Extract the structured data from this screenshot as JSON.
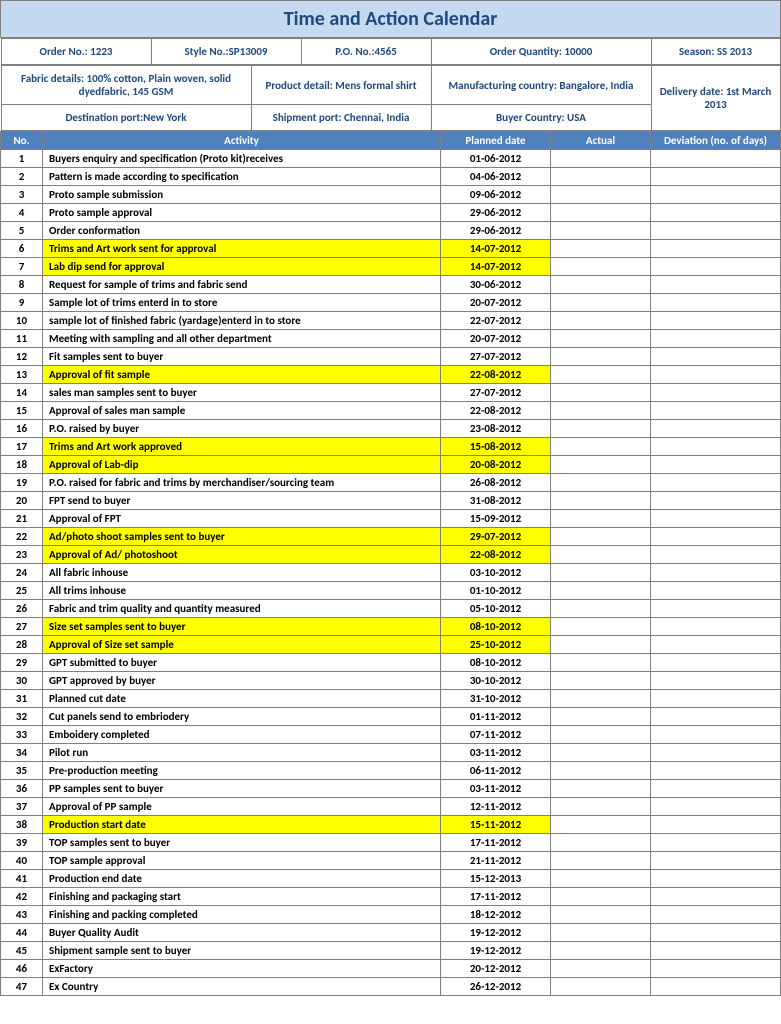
{
  "title": "Time and Action Calendar",
  "header": {
    "order_no": "Order No.: 1223",
    "style_no": "Style No.:SP13009",
    "po_no": "P.O. No.:4565",
    "order_qty": "Order Quantity: 10000",
    "season": "Season: SS 2013",
    "fabric": "Fabric details: 100% cotton, Plain woven, solid dyedfabric, 145 GSM",
    "product": "Product detail: Mens formal shirt",
    "mfg_country": "Manufacturing country: Bangalore, India",
    "delivery": "Delivery date: 1st March 2013",
    "dest_port": "Destination port:New York",
    "ship_port": "Shipment port: Chennai, India",
    "buyer_country": "Buyer Country: USA"
  },
  "columns": {
    "no": "No.",
    "activity": "Activity",
    "planned": "Planned date",
    "actual": "Actual",
    "deviation": "Deviation (no. of days)"
  },
  "rows": [
    {
      "n": "1",
      "a": "Buyers enquiry and specification (Proto kit)receives",
      "d": "01-06-2012",
      "hl": false
    },
    {
      "n": "2",
      "a": "Pattern is made according to specification",
      "d": "04-06-2012",
      "hl": false
    },
    {
      "n": "3",
      "a": "Proto sample submission",
      "d": "09-06-2012",
      "hl": false
    },
    {
      "n": "4",
      "a": "Proto sample approval",
      "d": "29-06-2012",
      "hl": false
    },
    {
      "n": "5",
      "a": "Order conformation",
      "d": "29-06-2012",
      "hl": false
    },
    {
      "n": "6",
      "a": "Trims and Art work sent for approval",
      "d": "14-07-2012",
      "hl": true
    },
    {
      "n": "7",
      "a": "Lab dip  send for approval",
      "d": "14-07-2012",
      "hl": true
    },
    {
      "n": "8",
      "a": "Request for sample of trims and fabric send",
      "d": "30-06-2012",
      "hl": false
    },
    {
      "n": "9",
      "a": "Sample lot of trims enterd in to store",
      "d": "20-07-2012",
      "hl": false
    },
    {
      "n": "10",
      "a": "sample lot of finished fabric (yardage)enterd in to store",
      "d": "22-07-2012",
      "hl": false
    },
    {
      "n": "11",
      "a": "Meeting with sampling and all other department",
      "d": "20-07-2012",
      "hl": false
    },
    {
      "n": "12",
      "a": "Fit samples sent to buyer",
      "d": "27-07-2012",
      "hl": false
    },
    {
      "n": "13",
      "a": "Approval of fit sample",
      "d": "22-08-2012",
      "hl": true
    },
    {
      "n": "14",
      "a": "sales man samples sent to buyer",
      "d": "27-07-2012",
      "hl": false
    },
    {
      "n": "15",
      "a": "Approval of sales man sample",
      "d": "22-08-2012",
      "hl": false
    },
    {
      "n": "16",
      "a": "P.O. raised by buyer",
      "d": "23-08-2012",
      "hl": false
    },
    {
      "n": "17",
      "a": "Trims and Art work approved",
      "d": "15-08-2012",
      "hl": true
    },
    {
      "n": "18",
      "a": "Approval of Lab-dip",
      "d": "20-08-2012",
      "hl": true
    },
    {
      "n": "19",
      "a": "P.O. raised for fabric and trims by merchandiser/sourcing team",
      "d": "26-08-2012",
      "hl": false
    },
    {
      "n": "20",
      "a": "FPT send to buyer",
      "d": "31-08-2012",
      "hl": false
    },
    {
      "n": "21",
      "a": "Approval of FPT",
      "d": "15-09-2012",
      "hl": false
    },
    {
      "n": "22",
      "a": "Ad/photo shoot samples sent to buyer",
      "d": "29-07-2012",
      "hl": true
    },
    {
      "n": "23",
      "a": "Approval of Ad/ photoshoot",
      "d": "22-08-2012",
      "hl": true
    },
    {
      "n": "24",
      "a": "All fabric inhouse",
      "d": "03-10-2012",
      "hl": false
    },
    {
      "n": "25",
      "a": "All trims inhouse",
      "d": "01-10-2012",
      "hl": false
    },
    {
      "n": "26",
      "a": "Fabric and trim quality and quantity measured",
      "d": "05-10-2012",
      "hl": false
    },
    {
      "n": "27",
      "a": "Size set samples sent to buyer",
      "d": "08-10-2012",
      "hl": true
    },
    {
      "n": "28",
      "a": "Approval of Size set sample",
      "d": "25-10-2012",
      "hl": true
    },
    {
      "n": "29",
      "a": "GPT submitted to buyer",
      "d": "08-10-2012",
      "hl": false
    },
    {
      "n": "30",
      "a": "GPT approved by buyer",
      "d": "30-10-2012",
      "hl": false
    },
    {
      "n": "31",
      "a": "Planned cut date",
      "d": "31-10-2012",
      "hl": false
    },
    {
      "n": "32",
      "a": "Cut panels send to embriodery",
      "d": "01-11-2012",
      "hl": false
    },
    {
      "n": "33",
      "a": "Emboidery completed",
      "d": "07-11-2012",
      "hl": false
    },
    {
      "n": "34",
      "a": "Pilot run",
      "d": "03-11-2012",
      "hl": false
    },
    {
      "n": "35",
      "a": "Pre-production meeting",
      "d": "06-11-2012",
      "hl": false
    },
    {
      "n": "36",
      "a": "PP samples sent to buyer",
      "d": "03-11-2012",
      "hl": false
    },
    {
      "n": "37",
      "a": "Approval of PP sample",
      "d": "12-11-2012",
      "hl": false
    },
    {
      "n": "38",
      "a": "Production  start date",
      "d": "15-11-2012",
      "hl": true
    },
    {
      "n": "39",
      "a": "TOP samples sent to buyer",
      "d": "17-11-2012",
      "hl": false
    },
    {
      "n": "40",
      "a": "TOP sample approval",
      "d": "21-11-2012",
      "hl": false
    },
    {
      "n": "41",
      "a": "Production end date",
      "d": "15-12-2013",
      "hl": false
    },
    {
      "n": "42",
      "a": "Finishing and packaging start",
      "d": "17-11-2012",
      "hl": false
    },
    {
      "n": "43",
      "a": "Finishing and packing completed",
      "d": "18-12-2012",
      "hl": false
    },
    {
      "n": "44",
      "a": "Buyer Quality Audit",
      "d": "19-12-2012",
      "hl": false
    },
    {
      "n": "45",
      "a": "Shipment sample sent to buyer",
      "d": "19-12-2012",
      "hl": false
    },
    {
      "n": "46",
      "a": "ExFactory",
      "d": "20-12-2012",
      "hl": false
    },
    {
      "n": "47",
      "a": "Ex Country",
      "d": "26-12-2012",
      "hl": false
    }
  ],
  "colors": {
    "title_bg": "#c5d9f1",
    "title_text": "#1f497d",
    "header_text": "#1f497d",
    "colhead_bg": "#4f81bd",
    "colhead_text": "#ffffff",
    "highlight_bg": "#ffff00",
    "border": "#808080",
    "body_text": "#000000"
  }
}
